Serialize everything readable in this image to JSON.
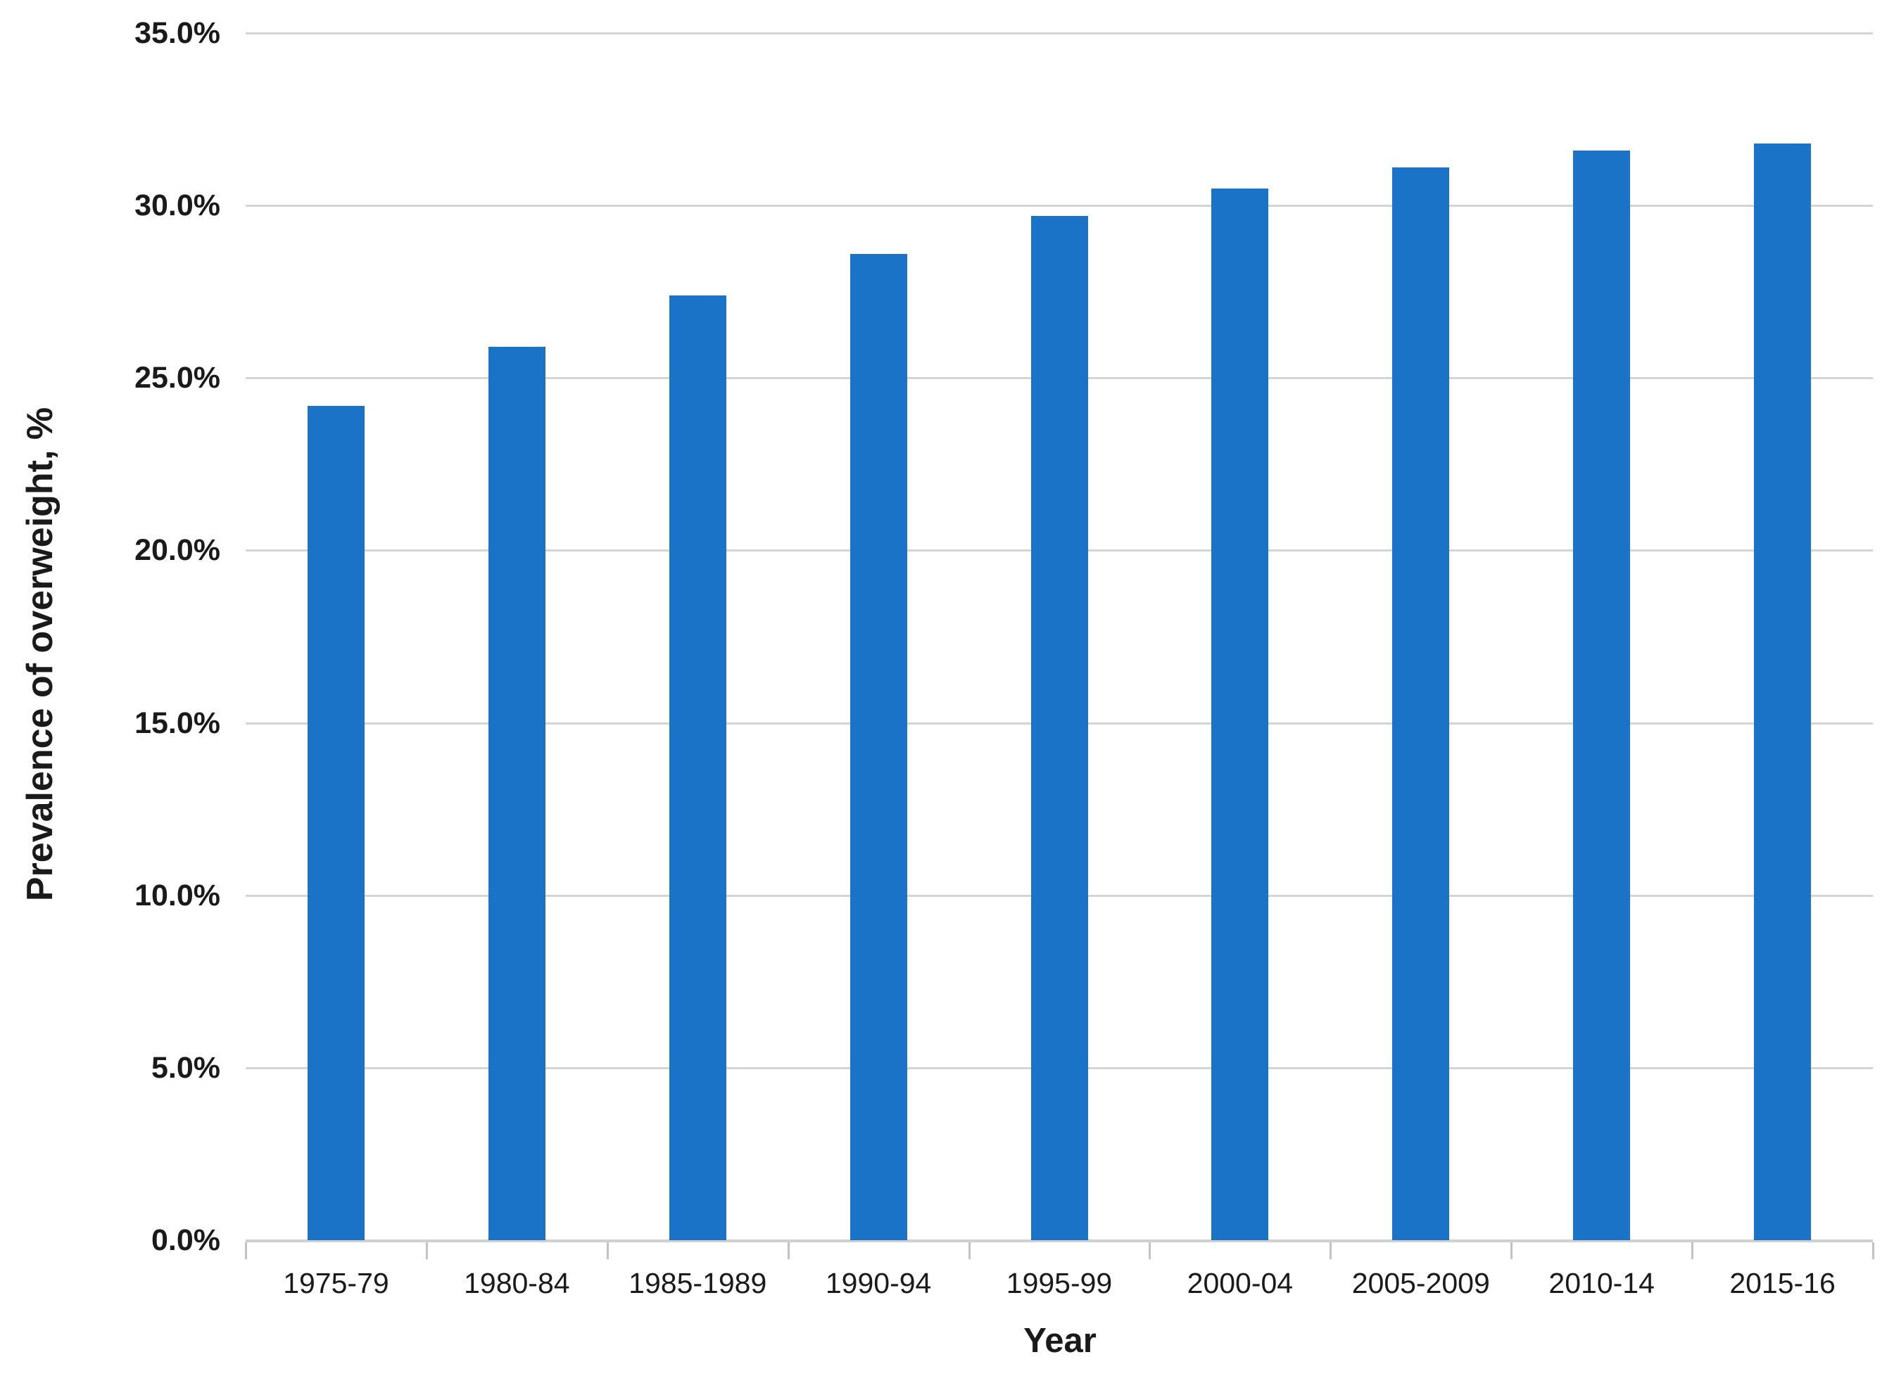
{
  "chart_data": {
    "type": "bar",
    "title": "",
    "categories": [
      "1975-79",
      "1980-84",
      "1985-1989",
      "1990-94",
      "1995-99",
      "2000-04",
      "2005-2009",
      "2010-14",
      "2015-16"
    ],
    "values": [
      24.2,
      25.9,
      27.4,
      28.6,
      29.7,
      30.5,
      31.1,
      31.6,
      31.8
    ],
    "xlabel": "Year",
    "ylabel": "Prevalence of overweight, %",
    "ylim": [
      0,
      35
    ],
    "y_tick_step": 5,
    "y_ticks": [
      "35.0%",
      "30.0%",
      "25.0%",
      "20.0%",
      "15.0%",
      "10.0%",
      "5.0%",
      "0.0%"
    ],
    "grid": true,
    "legend": "none",
    "colors": {
      "bar": "#1B73C8",
      "gridline": "#D5D5D5",
      "axis_line": "#D0D0D0",
      "axis_tick": "#C3C3C3",
      "text": "#1A1A1A"
    }
  }
}
